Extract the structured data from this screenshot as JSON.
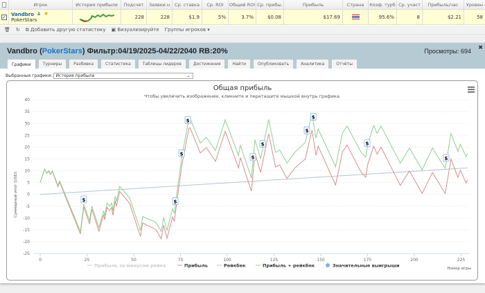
{
  "table": {
    "headers": [
      "Игрок",
      "История прибыли",
      "Подсчет",
      "Заявки н",
      "Ср. ставка",
      "Ср. ROI",
      "Общий ROI",
      "Ср. прибы.",
      "Прибыль",
      "Страна",
      "Коэф. турб",
      "Ср. участ",
      "Прибыль/час",
      "Уровен"
    ],
    "row": {
      "player": "Vandbro",
      "site": "PokerStars",
      "count": "228",
      "entries": "228",
      "avg_stake": "$1.9",
      "avg_roi": "5%",
      "total_roi": "3.7%",
      "avg_profit": "$0.08",
      "profit": "$17.69",
      "turbo": "95.6%",
      "avg_field": "8",
      "profit_hour": "$2.21",
      "level": "58"
    }
  },
  "toolbar": {
    "add_stat": "Добавить другую статистику",
    "visualize": "Визуализируйте",
    "groups": "Группы игроков ▾"
  },
  "panel": {
    "name": "Vandbro",
    "site": "PokerStars",
    "filter": "Фильтр:04/19/2025-04/22/2040 RB:20%",
    "views": "Просмотры: 694",
    "open_paren": " (",
    "close_paren": ")"
  },
  "tabs": [
    "Графики",
    "Турниры",
    "Разбивка",
    "Статистика",
    "Таблицы лидеров",
    "Достижения",
    "Найти",
    "Опубликовать",
    "Аналитика",
    "Отчёты"
  ],
  "selector": {
    "label": "Выбранные графики:",
    "value": "История прибыли"
  },
  "colors": {
    "profit": "#d98c8c",
    "rakeback_line": "#b0c4d4",
    "profit_plus_rb": "#8ed08e",
    "marker": "#7fb3e6"
  },
  "chart_data": {
    "type": "line",
    "title": "Общая прибыль",
    "subtitle": "Чтобы увеличить изображение, кликните и перетащите мышкой внутрь графика.",
    "xlabel": "Номер игры",
    "ylabel": "Суммарный итог (USD)",
    "xlim": [
      0,
      230
    ],
    "ylim": [
      -25,
      40
    ],
    "xticks": [
      0,
      25,
      50,
      75,
      100,
      125,
      150,
      175,
      200,
      225
    ],
    "yticks": [
      40,
      35,
      30,
      25,
      20,
      15,
      10,
      5,
      0,
      -5,
      -10,
      -15,
      -20,
      -25
    ],
    "profit": {
      "x": [
        0,
        2.3,
        3.5,
        4.6,
        5.5,
        6.5,
        9.5,
        10.4,
        21.5,
        23.3,
        26.4,
        27.6,
        31.4,
        33.9,
        34.5,
        35.7,
        37,
        38.2,
        38.9,
        40.1,
        40.8,
        42.5,
        47.8,
        53.6,
        54.8,
        57,
        60,
        62,
        64.7,
        66,
        67.8,
        70.8,
        71.7,
        73.3,
        75.8,
        79.5,
        80.1,
        85.6,
        88.8,
        93.7,
        98.9,
        106,
        107,
        112.9,
        114.8,
        117.8,
        122.1,
        125.8,
        128,
        131.9,
        136.2,
        141.7,
        145.3,
        147.4,
        148.6,
        157.9,
        161.6,
        164,
        171.5,
        174,
        175.2,
        178.3,
        180.1,
        182.2,
        192.5,
        197.4,
        204.2,
        209.7,
        216.5,
        219.6,
        223.3,
        224.6,
        227.7,
        228.5
      ],
      "y": [
        5,
        10.6,
        9,
        9.8,
        8.4,
        9.7,
        3.3,
        5.2,
        -16.7,
        -5.3,
        -12.5,
        -6.3,
        -15.5,
        -8.6,
        -10.7,
        -5.4,
        -6.8,
        -5.5,
        -8.9,
        -2.7,
        -5,
        1.3,
        -3.8,
        -17.8,
        -12,
        -13,
        -14,
        -15,
        -18.8,
        -13,
        -18.5,
        -9.5,
        -11.5,
        -1.7,
        12.8,
        28,
        28.2,
        17.5,
        19.8,
        14,
        26.7,
        11.2,
        15.6,
        1.4,
        17.5,
        9.3,
        25.7,
        11.6,
        12.5,
        6.8,
        11.2,
        15,
        27.2,
        16.5,
        20.4,
        4,
        18,
        20.9,
        9.5,
        7.2,
        13,
        20.4,
        17,
        20,
        3.8,
        9.9,
        0.4,
        9.3,
        0.4,
        15,
        7.2,
        10.2,
        4.8,
        6.2
      ]
    },
    "rakeback": {
      "x": [
        0,
        228.5
      ],
      "y": [
        0,
        11.2
      ]
    },
    "significant_wins_x": [
      23.3,
      72.2,
      75.6,
      78.9,
      113.7,
      118.9,
      142.6,
      146,
      174.8,
      217
    ],
    "legend": [
      {
        "label": "Прибыль за минусом рейка",
        "color": "#cccccc",
        "muted": true
      },
      {
        "label": "Прибыль",
        "color": "#d98c8c"
      },
      {
        "label": "Рейкбек",
        "color": "#b0c4d4"
      },
      {
        "label": "Прибыль + рейкбек",
        "color": "#8ed08e"
      },
      {
        "label": "Значительные выигрыши",
        "color": "#7fb3e6",
        "dot": true
      }
    ],
    "legend_position": "bottom",
    "marker_symbol": "$"
  }
}
